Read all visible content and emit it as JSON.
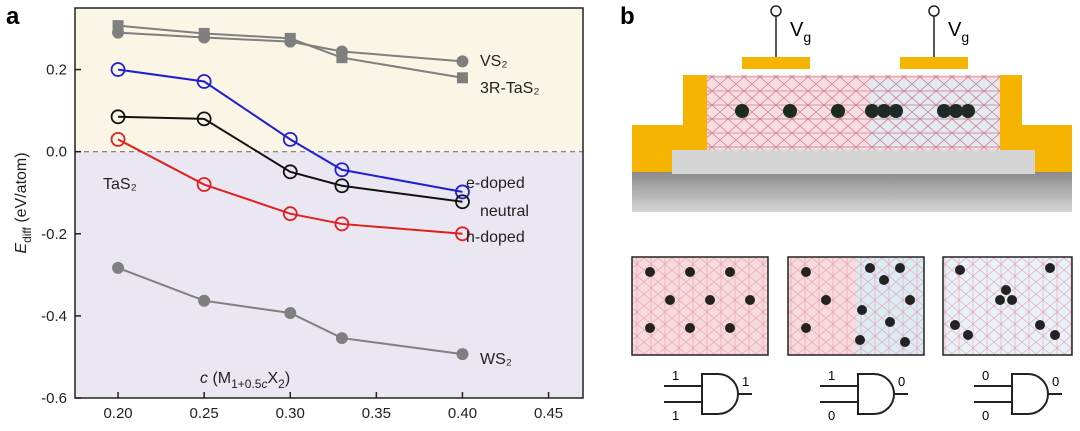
{
  "panel_labels": [
    "a",
    "b"
  ],
  "chart_data": {
    "type": "line",
    "y_label": {
      "symbol": "E",
      "subscript": "diff",
      "unit": " (eV/atom)"
    },
    "x_label_parts": [
      {
        "text": "c",
        "italic": true
      },
      {
        "text": " (M"
      },
      {
        "text": "1+0.5",
        "sub": true
      },
      {
        "text": "c",
        "sub": true,
        "italic": true
      },
      {
        "text": "X"
      },
      {
        "text": "2",
        "sub": true
      },
      {
        "text": ")"
      }
    ],
    "annotations": [
      "TaS₂"
    ],
    "x": [
      0.2,
      0.25,
      0.3,
      0.33,
      0.4
    ],
    "xlim": [
      0.175,
      0.47
    ],
    "xticks": [
      {
        "value": 0.2,
        "label": "0.20"
      },
      0.25,
      {
        "value": 0.3,
        "label": "0.30"
      },
      0.35,
      {
        "value": 0.4,
        "label": "0.40"
      },
      0.45
    ],
    "ylim": [
      -0.6,
      0.35
    ],
    "yticks": [
      {
        "value": -0.6,
        "label": "-0.6"
      },
      -0.4,
      -0.2,
      {
        "value": 0,
        "label": "0.0"
      },
      0.2
    ],
    "reference_line": 0,
    "series": [
      {
        "name": "VS₂",
        "color": "#7f7f7f",
        "marker": "circle",
        "filled": true,
        "values": [
          0.29,
          0.278,
          0.268,
          0.244,
          0.22
        ]
      },
      {
        "name": "3R-TaS₂",
        "color": "#7f7f7f",
        "marker": "square",
        "filled": true,
        "values": [
          0.307,
          0.288,
          0.276,
          0.229,
          0.18
        ]
      },
      {
        "name": "e-doped",
        "color": "#1f1fd0",
        "marker": "circle",
        "filled": false,
        "values": [
          0.2,
          0.171,
          0.03,
          -0.044,
          -0.098
        ]
      },
      {
        "name": "neutral",
        "color": "#111111",
        "marker": "circle",
        "filled": false,
        "values": [
          0.085,
          0.08,
          -0.049,
          -0.083,
          -0.122
        ]
      },
      {
        "name": "h-doped",
        "color": "#e02020",
        "marker": "circle",
        "filled": false,
        "values": [
          0.03,
          -0.08,
          -0.151,
          -0.176,
          -0.2
        ]
      },
      {
        "name": "WS₂",
        "color": "#7f7f7f",
        "marker": "circle",
        "filled": true,
        "values": [
          -0.283,
          -0.363,
          -0.393,
          -0.454,
          -0.493
        ]
      }
    ]
  },
  "diagram": {
    "gate_labels": [
      {
        "main": "V",
        "sub": "g"
      },
      {
        "main": "V",
        "sub": "g"
      }
    ],
    "logic_gates": [
      {
        "inputs": [
          "1",
          "1"
        ],
        "output": "1"
      },
      {
        "inputs": [
          "1",
          "0"
        ],
        "output": "0"
      },
      {
        "inputs": [
          "0",
          "0"
        ],
        "output": "0"
      }
    ]
  }
}
